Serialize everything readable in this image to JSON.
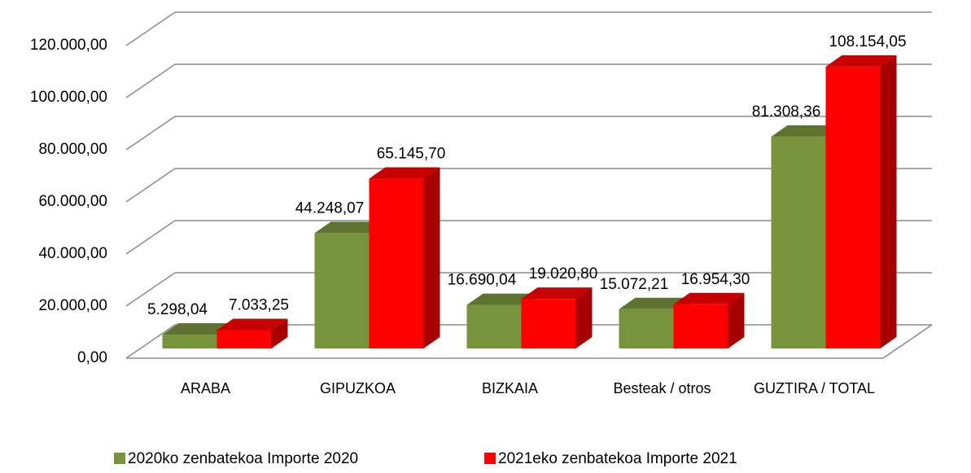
{
  "chart_data": {
    "type": "bar3d",
    "categories": [
      "ARABA",
      "GIPUZKOA",
      "BIZKAIA",
      "Besteak / otros",
      "GUZTIRA  /  TOTAL"
    ],
    "series": [
      {
        "name": "2020ko zenbatekoa Importe 2020",
        "color": "#77933c",
        "values": [
          5298.04,
          44248.07,
          16690.04,
          15072.21,
          81308.36
        ],
        "value_labels": [
          "5.298,04",
          "44.248,07",
          "16.690,04",
          "15.072,21",
          "81.308,36"
        ]
      },
      {
        "name": "2021eko zenbatekoa Importe 2021",
        "color": "#ff0000",
        "values": [
          7033.25,
          65145.7,
          19020.8,
          16954.3,
          108154.05
        ],
        "value_labels": [
          "7.033,25",
          "65.145,70",
          "19.020,80",
          "16.954,30",
          "108.154,05"
        ]
      }
    ],
    "ylim": [
      0,
      120000
    ],
    "yticks": [
      {
        "value": 0,
        "label": "0,00"
      },
      {
        "value": 20000,
        "label": "20.000,00"
      },
      {
        "value": 40000,
        "label": "40.000,00"
      },
      {
        "value": 60000,
        "label": "60.000,00"
      },
      {
        "value": 80000,
        "label": "80.000,00"
      },
      {
        "value": 100000,
        "label": "100.000,00"
      },
      {
        "value": 120000,
        "label": "120.000,00"
      }
    ],
    "grid": true,
    "legend": "bottom"
  }
}
